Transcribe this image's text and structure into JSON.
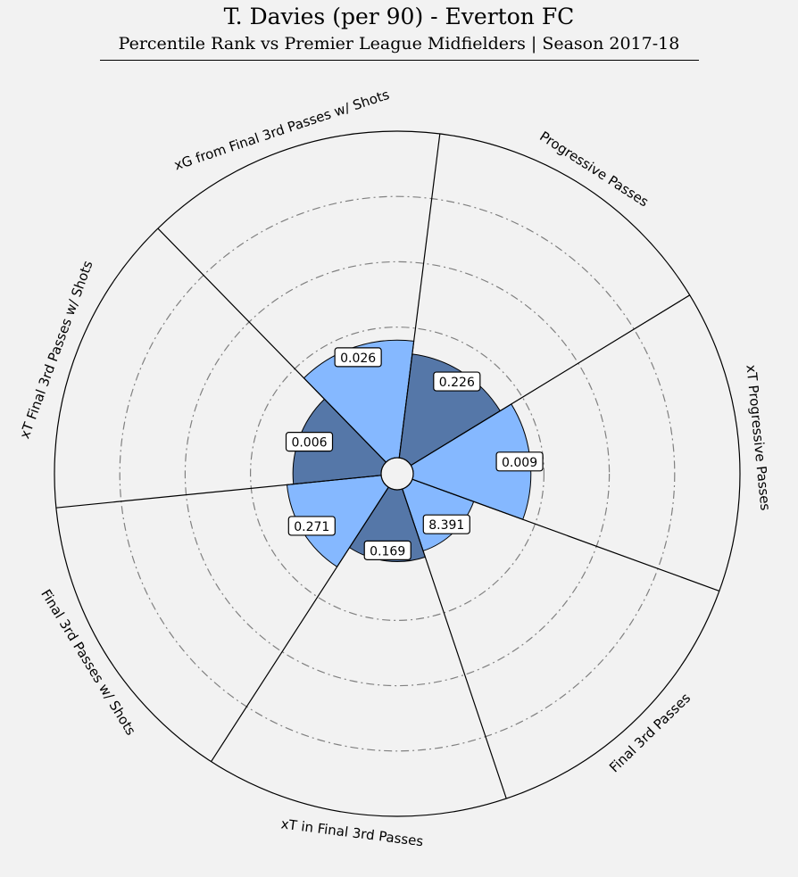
{
  "chart_data": {
    "type": "pizza",
    "title": "T. Davies (per 90) - Everton FC",
    "subtitle": "Percentile Rank vs Premier League Midfielders | Season 2017-18",
    "rlim": [
      0,
      100
    ],
    "grid": true,
    "slices": [
      {
        "label": "Final 3rd Passes",
        "value_label": "8.391",
        "percentile": 20,
        "color": "#85b8ff"
      },
      {
        "label": "xT in Final 3rd Passes",
        "value_label": "0.169",
        "percentile": 22,
        "color": "#5577a8"
      },
      {
        "label": "Final 3rd Passes w/ Shots",
        "value_label": "0.271",
        "percentile": 29,
        "color": "#85b8ff"
      },
      {
        "label": "xT Final 3rd Passes w/ Shots",
        "value_label": "0.006",
        "percentile": 27,
        "color": "#5577a8"
      },
      {
        "label": "xG from Final 3rd Passes w/ Shots",
        "value_label": "0.026",
        "percentile": 36,
        "color": "#85b8ff"
      },
      {
        "label": "Progressive Passes",
        "value_label": "0.226",
        "percentile": 32,
        "color": "#5577a8"
      },
      {
        "label": "xT Progressive Passes",
        "value_label": "0.009",
        "percentile": 36,
        "color": "#85b8ff"
      }
    ]
  }
}
